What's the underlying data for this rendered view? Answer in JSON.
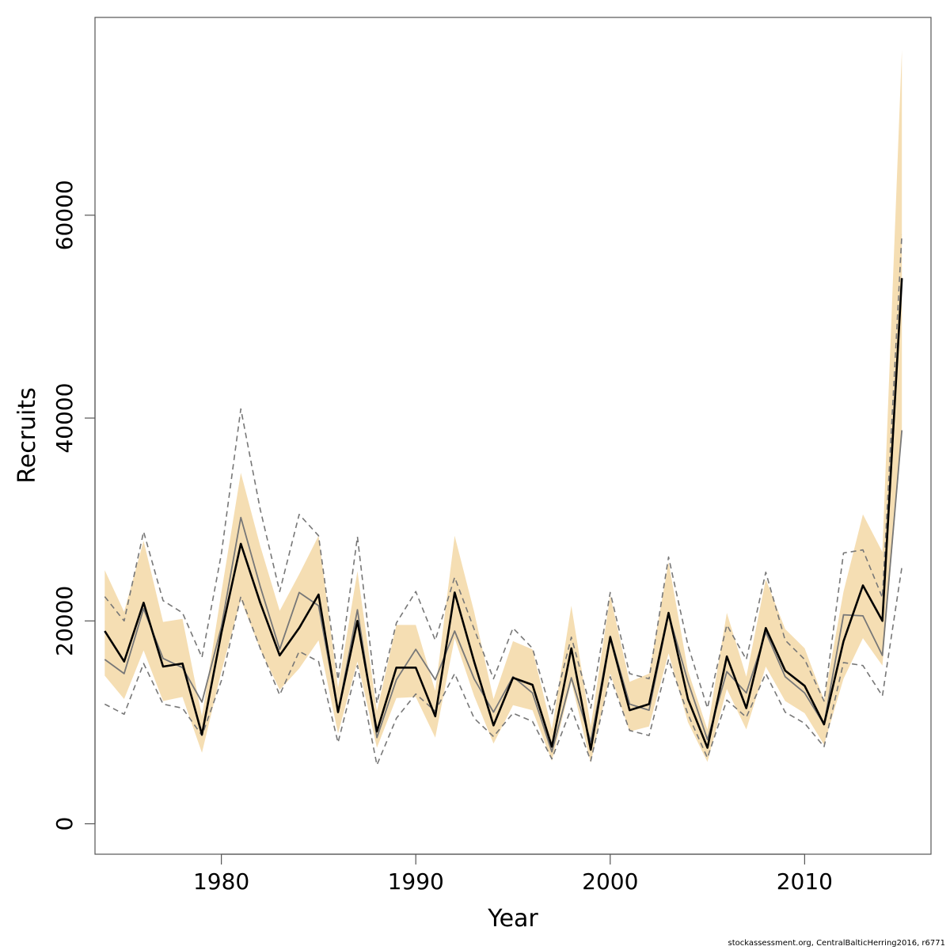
{
  "chart_data": {
    "type": "line",
    "xlabel": "Year",
    "ylabel": "Recruits",
    "x": [
      1974,
      1975,
      1976,
      1977,
      1978,
      1979,
      1980,
      1981,
      1982,
      1983,
      1984,
      1985,
      1986,
      1987,
      1988,
      1989,
      1990,
      1991,
      1992,
      1993,
      1994,
      1995,
      1996,
      1997,
      1998,
      1999,
      2000,
      2001,
      2002,
      2003,
      2004,
      2005,
      2006,
      2007,
      2008,
      2009,
      2010,
      2011,
      2012,
      2013,
      2014,
      2015
    ],
    "xlim": [
      1973.5,
      2016.5
    ],
    "ylim": [
      -3000,
      79500
    ],
    "x_ticks": [
      1980,
      1990,
      2000,
      2010
    ],
    "y_ticks": [
      0,
      20000,
      40000,
      60000
    ],
    "band_color": "#f5deb3",
    "series": [
      {
        "role": "estimate",
        "color": "#000000",
        "values": [
          19000,
          16000,
          21800,
          15500,
          15800,
          8800,
          18800,
          27600,
          21800,
          16600,
          19300,
          22600,
          11000,
          20000,
          9100,
          15400,
          15400,
          10600,
          22800,
          16000,
          9700,
          14400,
          13700,
          7600,
          17300,
          7300,
          18400,
          11200,
          11800,
          20800,
          12300,
          7500,
          16500,
          11400,
          19300,
          15100,
          13600,
          9800,
          18000,
          23500,
          20000,
          53800
        ]
      },
      {
        "role": "comparison",
        "color": "#777777",
        "values": [
          16200,
          14800,
          21200,
          16300,
          15400,
          12000,
          19400,
          30200,
          23400,
          17200,
          22800,
          21500,
          11000,
          21100,
          8500,
          14200,
          17200,
          14200,
          19000,
          14300,
          11000,
          14500,
          12900,
          7100,
          14400,
          8100,
          18500,
          11800,
          11200,
          20700,
          14000,
          8300,
          15000,
          12900,
          18900,
          14500,
          12900,
          9800,
          20600,
          20500,
          16600,
          38800
        ]
      },
      {
        "role": "upper-dashed",
        "color": "#777777",
        "values": [
          22400,
          20000,
          28800,
          22000,
          20800,
          16400,
          26600,
          40900,
          31000,
          22900,
          30500,
          28400,
          14200,
          28300,
          11900,
          19800,
          22900,
          18100,
          24300,
          19200,
          14300,
          19300,
          17300,
          10800,
          18400,
          11400,
          22800,
          14800,
          14300,
          26300,
          17600,
          11400,
          19600,
          16200,
          24800,
          18100,
          16200,
          12100,
          26700,
          27000,
          22300,
          58100
        ]
      },
      {
        "role": "lower-dashed",
        "color": "#777777",
        "values": [
          11800,
          10800,
          15800,
          11800,
          11400,
          8700,
          14100,
          22400,
          17300,
          12700,
          17000,
          16000,
          8000,
          15600,
          5800,
          10400,
          12800,
          11100,
          14800,
          10400,
          8600,
          10900,
          10100,
          6400,
          11400,
          6200,
          14500,
          9200,
          8700,
          16200,
          10800,
          6500,
          12200,
          10500,
          14800,
          11000,
          9900,
          7600,
          15900,
          15600,
          12600,
          25300
        ]
      }
    ],
    "band": {
      "upper": [
        25000,
        20900,
        27900,
        19900,
        20200,
        10600,
        22800,
        34600,
        27400,
        21000,
        24600,
        28400,
        13400,
        24900,
        11100,
        19600,
        19600,
        13100,
        28400,
        20900,
        12300,
        18000,
        17200,
        9300,
        21500,
        9600,
        22500,
        14000,
        14800,
        25800,
        15100,
        9300,
        20800,
        14500,
        24100,
        19200,
        17300,
        12200,
        22900,
        30500,
        26800,
        76300
      ],
      "lower": [
        14600,
        12300,
        17100,
        12100,
        12500,
        7000,
        15000,
        22100,
        17200,
        13200,
        15300,
        18100,
        8900,
        16000,
        7500,
        12400,
        12500,
        8500,
        18300,
        12600,
        7900,
        11700,
        11200,
        6200,
        14000,
        6000,
        14800,
        9100,
        9600,
        16800,
        10000,
        6100,
        13300,
        9300,
        15500,
        12100,
        10900,
        7800,
        14300,
        18300,
        15600,
        38200
      ]
    }
  },
  "footnote": "stockassessment.org, CentralBalticHerring2016, r6771"
}
